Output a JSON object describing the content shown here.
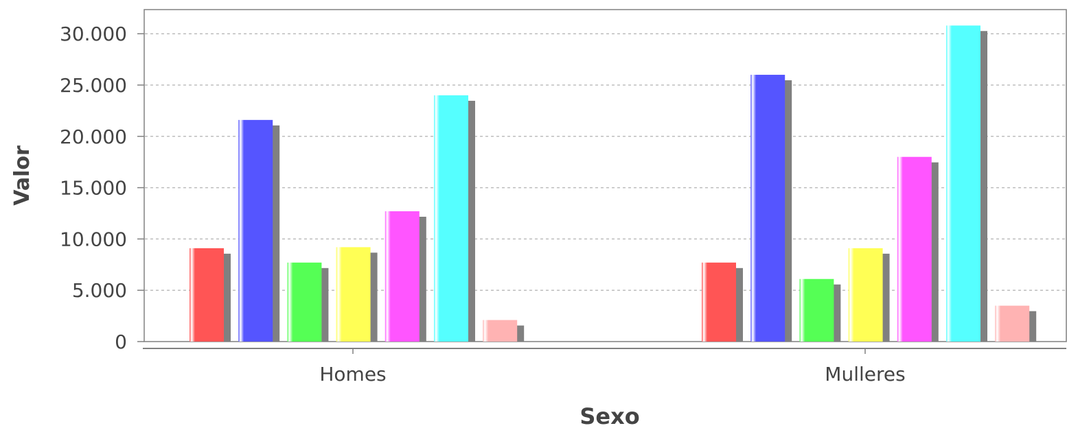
{
  "chart_data": {
    "type": "bar",
    "categories": [
      "Homes",
      "Mulleres"
    ],
    "series": [
      {
        "values": [
          9100,
          7700
        ],
        "color": "#ff5555"
      },
      {
        "values": [
          21600,
          26000
        ],
        "color": "#5555ff"
      },
      {
        "values": [
          7700,
          6100
        ],
        "color": "#55ff55"
      },
      {
        "values": [
          9200,
          9100
        ],
        "color": "#ffff55"
      },
      {
        "values": [
          12700,
          18000
        ],
        "color": "#ff55ff"
      },
      {
        "values": [
          24000,
          30800
        ],
        "color": "#55ffff"
      },
      {
        "values": [
          2100,
          3500
        ],
        "color": "#ffb3b3"
      }
    ],
    "xlabel": "Sexo",
    "ylabel": "Valor",
    "ylim": [
      0,
      32500
    ],
    "yticks": [
      0,
      5000,
      10000,
      15000,
      20000,
      25000,
      30000
    ],
    "ytick_labels": [
      "0",
      "5.000",
      "10.000",
      "15.000",
      "20.000",
      "25.000",
      "30.000"
    ],
    "grid": true,
    "gridline_style": "dashed",
    "shadow_color": "#808080",
    "axis_color": "#808080"
  }
}
